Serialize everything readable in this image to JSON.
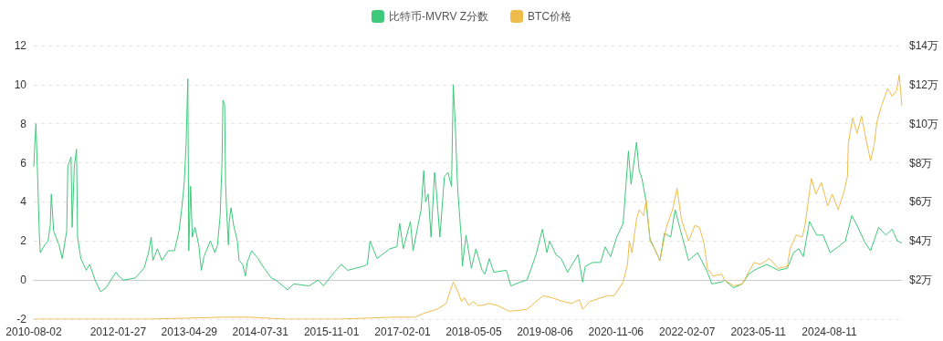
{
  "chart_data": {
    "type": "line",
    "legend": "top",
    "grid": "y",
    "xlim": [
      "2010-08-02",
      "2025-11-21"
    ],
    "xticks": [
      "2010-08-02",
      "2012-01-27",
      "2013-04-29",
      "2014-07-31",
      "2015-11-01",
      "2017-02-01",
      "2018-05-05",
      "2019-08-06",
      "2020-11-06",
      "2022-02-07",
      "2023-05-11",
      "2024-08-11"
    ],
    "ylim": [
      -2,
      12
    ],
    "yticks": [
      -2,
      0,
      2,
      4,
      6,
      8,
      10,
      12
    ],
    "y2lim": [
      0,
      14
    ],
    "y2ticks": [
      {
        "value": 2,
        "label": "$2万"
      },
      {
        "value": 4,
        "label": "$4万"
      },
      {
        "value": 6,
        "label": "$6万"
      },
      {
        "value": 8,
        "label": "$8万"
      },
      {
        "value": 10,
        "label": "$10万"
      },
      {
        "value": 12,
        "label": "$12万"
      },
      {
        "value": 14,
        "label": "$14万"
      }
    ],
    "series": [
      {
        "name": "比特币-MVRV Z分数",
        "color": "#3ec87a",
        "x": [
          "2010-08-02",
          "2010-08-09",
          "2010-08-16",
          "2010-08-30",
          "2010-09-06",
          "2010-09-13",
          "2010-10-12",
          "2010-11-02",
          "2010-11-16",
          "2010-11-23",
          "2010-12-08",
          "2011-01-11",
          "2011-02-01",
          "2011-03-02",
          "2011-03-09",
          "2011-03-30",
          "2011-04-06",
          "2011-04-20",
          "2011-05-04",
          "2011-05-11",
          "2011-06-01",
          "2011-07-06",
          "2011-07-28",
          "2011-09-01",
          "2011-10-06",
          "2011-11-10",
          "2012-01-13",
          "2012-02-01",
          "2012-03-01",
          "2012-05-15",
          "2012-07-12",
          "2012-08-10",
          "2012-08-27",
          "2012-09-07",
          "2012-10-06",
          "2012-11-04",
          "2012-12-15",
          "2013-01-24",
          "2013-02-22",
          "2013-03-11",
          "2013-03-28",
          "2013-04-09",
          "2013-04-20",
          "2013-04-26",
          "2013-05-08",
          "2013-05-19",
          "2013-06-05",
          "2013-06-29",
          "2013-07-16",
          "2013-08-02",
          "2013-09-12",
          "2013-10-11",
          "2013-10-28",
          "2013-11-14",
          "2013-11-26",
          "2013-12-02",
          "2013-12-13",
          "2013-12-19",
          "2013-12-25",
          "2014-01-06",
          "2014-01-12",
          "2014-01-23",
          "2014-02-09",
          "2014-03-05",
          "2014-03-16",
          "2014-04-08",
          "2014-04-26",
          "2014-05-07",
          "2014-06-05",
          "2014-07-16",
          "2014-08-25",
          "2014-10-10",
          "2014-11-08",
          "2015-01-22",
          "2015-03-03",
          "2015-06-10",
          "2015-08-07",
          "2015-09-10",
          "2015-11-19",
          "2016-01-04",
          "2016-02-13",
          "2016-05-21",
          "2016-06-19",
          "2016-07-06",
          "2016-08-21",
          "2016-11-10",
          "2016-12-26",
          "2017-01-13",
          "2017-02-05",
          "2017-03-23",
          "2017-04-09",
          "2017-05-31",
          "2017-06-17",
          "2017-06-29",
          "2017-07-16",
          "2017-08-03",
          "2017-08-26",
          "2017-09-06",
          "2017-09-29",
          "2017-10-28",
          "2017-11-20",
          "2017-12-13",
          "2017-12-24",
          "2018-01-06",
          "2018-01-17",
          "2018-01-23",
          "2018-02-15",
          "2018-02-21",
          "2018-03-16",
          "2018-04-20",
          "2018-05-19",
          "2018-06-28",
          "2018-07-16",
          "2018-08-13",
          "2018-09-11",
          "2018-12-01",
          "2018-12-30",
          "2019-03-03",
          "2019-04-13",
          "2019-06-10",
          "2019-07-21",
          "2019-08-19",
          "2019-09-05",
          "2019-10-16",
          "2019-11-19",
          "2019-12-30",
          "2020-03-07",
          "2020-04-05",
          "2020-04-22",
          "2020-06-08",
          "2020-07-30",
          "2020-08-28",
          "2020-10-02",
          "2020-11-11",
          "2020-12-22",
          "2021-01-25",
          "2021-02-11",
          "2021-03-18",
          "2021-04-04",
          "2021-04-22",
          "2021-05-15",
          "2021-06-13",
          "2021-07-12",
          "2021-08-16",
          "2021-09-14",
          "2021-10-24",
          "2021-11-22",
          "2021-12-21",
          "2022-02-16",
          "2022-04-15",
          "2022-06-12",
          "2022-07-17",
          "2022-09-18",
          "2022-10-06",
          "2022-12-03",
          "2023-01-28",
          "2023-03-10",
          "2023-04-14",
          "2023-07-04",
          "2023-09-17",
          "2023-11-14",
          "2023-12-24",
          "2024-01-27",
          "2024-02-25",
          "2024-04-05",
          "2024-05-21",
          "2024-07-01",
          "2024-08-16",
          "2024-10-07",
          "2024-11-22",
          "2025-01-02",
          "2025-02-05",
          "2025-03-29",
          "2025-05-03",
          "2025-06-24",
          "2025-08-09",
          "2025-09-19",
          "2025-10-23",
          "2025-11-21"
        ],
        "values": [
          5.8,
          7.0,
          8.0,
          4.5,
          2.5,
          1.4,
          1.8,
          2.0,
          2.8,
          4.4,
          2.5,
          1.8,
          1.1,
          2.5,
          5.8,
          6.3,
          2.7,
          5.8,
          6.7,
          2.2,
          1.1,
          0.5,
          0.8,
          0.0,
          -0.6,
          -0.4,
          0.4,
          0.2,
          0.0,
          0.1,
          0.6,
          1.4,
          2.2,
          1.0,
          1.6,
          1.0,
          1.5,
          1.5,
          2.5,
          3.6,
          5.0,
          7.0,
          10.3,
          1.5,
          4.8,
          2.2,
          2.7,
          1.8,
          0.5,
          1.2,
          2.0,
          1.4,
          1.8,
          3.3,
          6.0,
          9.2,
          9.0,
          5.0,
          3.7,
          1.8,
          3.0,
          3.7,
          2.8,
          2.0,
          1.0,
          0.8,
          0.2,
          0.9,
          1.5,
          1.1,
          0.6,
          0.1,
          0.0,
          -0.5,
          -0.2,
          -0.3,
          0.0,
          -0.3,
          0.4,
          0.8,
          0.5,
          0.7,
          0.8,
          2.0,
          1.1,
          1.6,
          1.7,
          2.9,
          1.6,
          3.0,
          1.5,
          3.6,
          5.6,
          4.0,
          4.4,
          2.2,
          5.5,
          4.6,
          2.2,
          5.3,
          5.5,
          4.8,
          10.0,
          8.0,
          5.5,
          4.5,
          2.0,
          0.7,
          2.3,
          0.6,
          1.6,
          0.5,
          0.3,
          1.1,
          0.4,
          0.5,
          -0.3,
          -0.1,
          0.0,
          1.3,
          2.6,
          1.4,
          2.0,
          1.3,
          1.1,
          0.4,
          1.3,
          -0.1,
          0.7,
          0.9,
          0.9,
          1.7,
          1.2,
          2.2,
          2.9,
          6.6,
          4.9,
          7.05,
          5.6,
          5.2,
          4.2,
          2.1,
          1.6,
          1.0,
          2.4,
          2.2,
          3.6,
          2.7,
          1.0,
          1.4,
          0.5,
          -0.2,
          -0.1,
          0.0,
          -0.4,
          -0.2,
          0.3,
          0.5,
          0.8,
          0.5,
          0.6,
          1.4,
          1.6,
          1.2,
          3.0,
          2.3,
          2.3,
          1.4,
          1.7,
          2.0,
          3.3,
          2.8,
          1.9,
          1.5,
          2.7,
          2.3,
          2.6,
          2.0,
          1.9
        ]
      },
      {
        "name": "BTC价格",
        "color": "#efbc4c",
        "axis": "y2",
        "x": [
          "2010-08-02",
          "2012-08-22",
          "2013-12-08",
          "2014-05-20",
          "2015-01-05",
          "2015-12-18",
          "2016-11-29",
          "2017-04-21",
          "2017-06-17",
          "2017-09-11",
          "2017-11-08",
          "2017-12-24",
          "2018-01-23",
          "2018-02-15",
          "2018-03-05",
          "2018-04-03",
          "2018-05-02",
          "2018-05-31",
          "2018-06-28",
          "2018-08-13",
          "2018-10-04",
          "2018-12-19",
          "2019-04-13",
          "2019-06-10",
          "2019-07-27",
          "2019-09-18",
          "2019-12-03",
          "2020-01-27",
          "2020-03-15",
          "2020-04-05",
          "2020-05-21",
          "2020-08-05",
          "2020-09-14",
          "2020-10-25",
          "2020-12-22",
          "2021-01-19",
          "2021-01-31",
          "2021-02-17",
          "2021-03-18",
          "2021-04-04",
          "2021-05-03",
          "2021-05-20",
          "2021-06-13",
          "2021-07-12",
          "2021-08-16",
          "2021-09-26",
          "2021-11-05",
          "2021-12-04",
          "2022-01-01",
          "2022-02-16",
          "2022-03-29",
          "2022-04-27",
          "2022-05-26",
          "2022-06-18",
          "2022-07-23",
          "2022-09-18",
          "2022-10-06",
          "2022-12-03",
          "2023-01-28",
          "2023-03-10",
          "2023-04-14",
          "2023-05-25",
          "2023-07-22",
          "2023-09-17",
          "2023-11-14",
          "2023-12-02",
          "2024-01-10",
          "2024-02-19",
          "2024-03-07",
          "2024-04-05",
          "2024-04-17",
          "2024-05-16",
          "2024-06-20",
          "2024-07-31",
          "2024-08-29",
          "2024-10-07",
          "2024-11-12",
          "2024-12-05",
          "2024-12-11",
          "2025-01-08",
          "2025-02-05",
          "2025-03-06",
          "2025-04-04",
          "2025-05-03",
          "2025-05-26",
          "2025-06-13",
          "2025-07-12",
          "2025-08-21",
          "2025-09-19",
          "2025-10-18",
          "2025-11-04",
          "2025-11-21"
        ],
        "values": [
          0,
          0,
          0.1,
          0.1,
          0,
          0,
          0.1,
          0.1,
          0.3,
          0.5,
          0.8,
          1.9,
          1.4,
          0.9,
          1.1,
          0.7,
          0.9,
          0.7,
          0.7,
          0.8,
          0.7,
          0.4,
          0.5,
          0.9,
          1.2,
          1.1,
          0.9,
          0.8,
          1.0,
          0.5,
          0.9,
          1.1,
          1.2,
          1.2,
          1.9,
          2.8,
          4.0,
          3.4,
          5.1,
          5.6,
          5.3,
          6.1,
          4.0,
          3.6,
          3.0,
          4.7,
          5.6,
          6.7,
          5.1,
          4.0,
          4.8,
          4.7,
          3.9,
          2.6,
          2.2,
          2.3,
          2.0,
          1.7,
          1.8,
          2.4,
          2.9,
          2.8,
          3.1,
          2.6,
          2.7,
          3.6,
          4.3,
          4.2,
          4.8,
          6.5,
          7.2,
          6.4,
          7.0,
          5.8,
          6.4,
          5.6,
          6.5,
          7.3,
          9.0,
          10.3,
          9.5,
          10.4,
          9.2,
          8.1,
          8.9,
          10.1,
          10.9,
          11.8,
          11.4,
          11.7,
          12.5,
          10.9
        ]
      }
    ]
  }
}
